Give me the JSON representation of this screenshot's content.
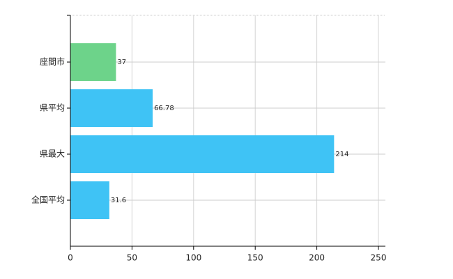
{
  "chart_data": {
    "type": "bar",
    "orientation": "horizontal",
    "categories": [
      "座間市",
      "県平均",
      "県最大",
      "全国平均"
    ],
    "values": [
      37,
      66.78,
      214,
      31.6
    ],
    "colors": [
      "#6dd38a",
      "#3fc3f5",
      "#3fc3f5",
      "#3fc3f5"
    ],
    "xlim": [
      0,
      250
    ],
    "xticks": [
      0,
      50,
      100,
      150,
      200,
      250
    ],
    "grid": true
  }
}
